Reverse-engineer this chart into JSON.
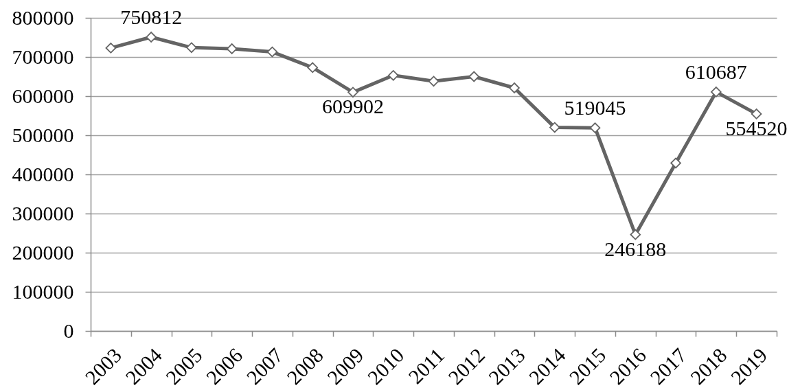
{
  "chart_data": {
    "type": "line",
    "categories": [
      "2003",
      "2004",
      "2005",
      "2006",
      "2007",
      "2008",
      "2009",
      "2010",
      "2011",
      "2012",
      "2013",
      "2014",
      "2015",
      "2016",
      "2017",
      "2018",
      "2019"
    ],
    "series": [
      {
        "color": "#646464",
        "values": [
          723000,
          750812,
          724000,
          721000,
          713000,
          673000,
          609902,
          653000,
          638000,
          650000,
          621000,
          520000,
          519045,
          246188,
          429000,
          610687,
          554520
        ],
        "value_labels": [
          null,
          "750812",
          null,
          null,
          null,
          null,
          "609902",
          null,
          null,
          null,
          null,
          null,
          "519045",
          "246188",
          null,
          "610687",
          "554520"
        ]
      }
    ],
    "ylim": [
      0,
      800000
    ],
    "yticks": [
      0,
      100000,
      200000,
      300000,
      400000,
      500000,
      600000,
      700000,
      800000
    ],
    "grid": "y",
    "marker": "diamond",
    "line_style": "solid"
  }
}
